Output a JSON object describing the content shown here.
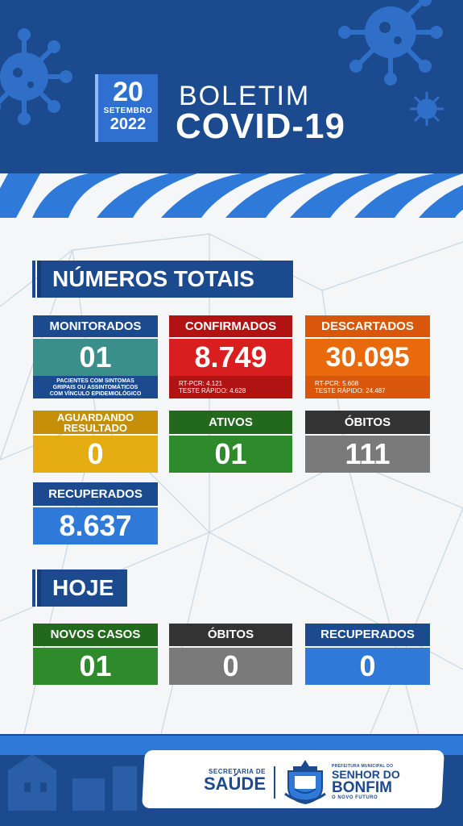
{
  "header": {
    "day": "20",
    "month": "SETEMBRO",
    "year": "2022",
    "title_line1": "BOLETIM",
    "title_line2": "COVID-19"
  },
  "totals": {
    "heading": "NÚMEROS TOTAIS",
    "monitorados": {
      "label": "MONITORADOS",
      "value": "01",
      "note_line1": "PACIENTES COM SINTOMAS",
      "note_line2": "GRIPAIS OU ASSINTOMÁTICOS",
      "note_line3": "COM VÍNCULO EPIDEMIOLÓGICO",
      "color": "#3a8f8a"
    },
    "confirmados": {
      "label": "CONFIRMADOS",
      "value": "8.749",
      "rt_pcr": "RT-PCR: 4.121",
      "teste_rapido": "TESTE RÁPIDO: 4.628",
      "color": "#d81e1e"
    },
    "descartados": {
      "label": "DESCARTADOS",
      "value": "30.095",
      "rt_pcr": "RT-PCR: 5.608",
      "teste_rapido": "TESTE RÁPIDO: 24.487",
      "color": "#e96a0c"
    },
    "aguardando": {
      "label_line1": "AGUARDANDO",
      "label_line2": "RESULTADO",
      "value": "0",
      "color": "#e6ad12"
    },
    "ativos": {
      "label": "ATIVOS",
      "value": "01",
      "color": "#2f8a2b"
    },
    "obitos": {
      "label": "ÓBITOS",
      "value": "111",
      "color": "#7a7a7a"
    },
    "recuperados": {
      "label": "RECUPERADOS",
      "value": "8.637",
      "color": "#2f7ad9"
    }
  },
  "hoje": {
    "heading": "HOJE",
    "novos_casos": {
      "label": "NOVOS CASOS",
      "value": "01",
      "color": "#2f8a2b"
    },
    "obitos": {
      "label": "ÓBITOS",
      "value": "0",
      "color": "#7a7a7a"
    },
    "recuperados": {
      "label": "RECUPERADOS",
      "value": "0",
      "color": "#2f7ad9"
    }
  },
  "footer": {
    "secretaria_line1": "SECRETARIA DE",
    "secretaria_line2": "SAÚDE",
    "prefeitura": "PREFEITURA MUNICIPAL DO",
    "city_line1": "SENHOR DO",
    "city_line2": "BONFIM",
    "slogan": "O NOVO FUTURO"
  },
  "colors": {
    "navy": "#1c4a8f",
    "royal": "#2f7ad9",
    "dark_bar": "#333333"
  }
}
